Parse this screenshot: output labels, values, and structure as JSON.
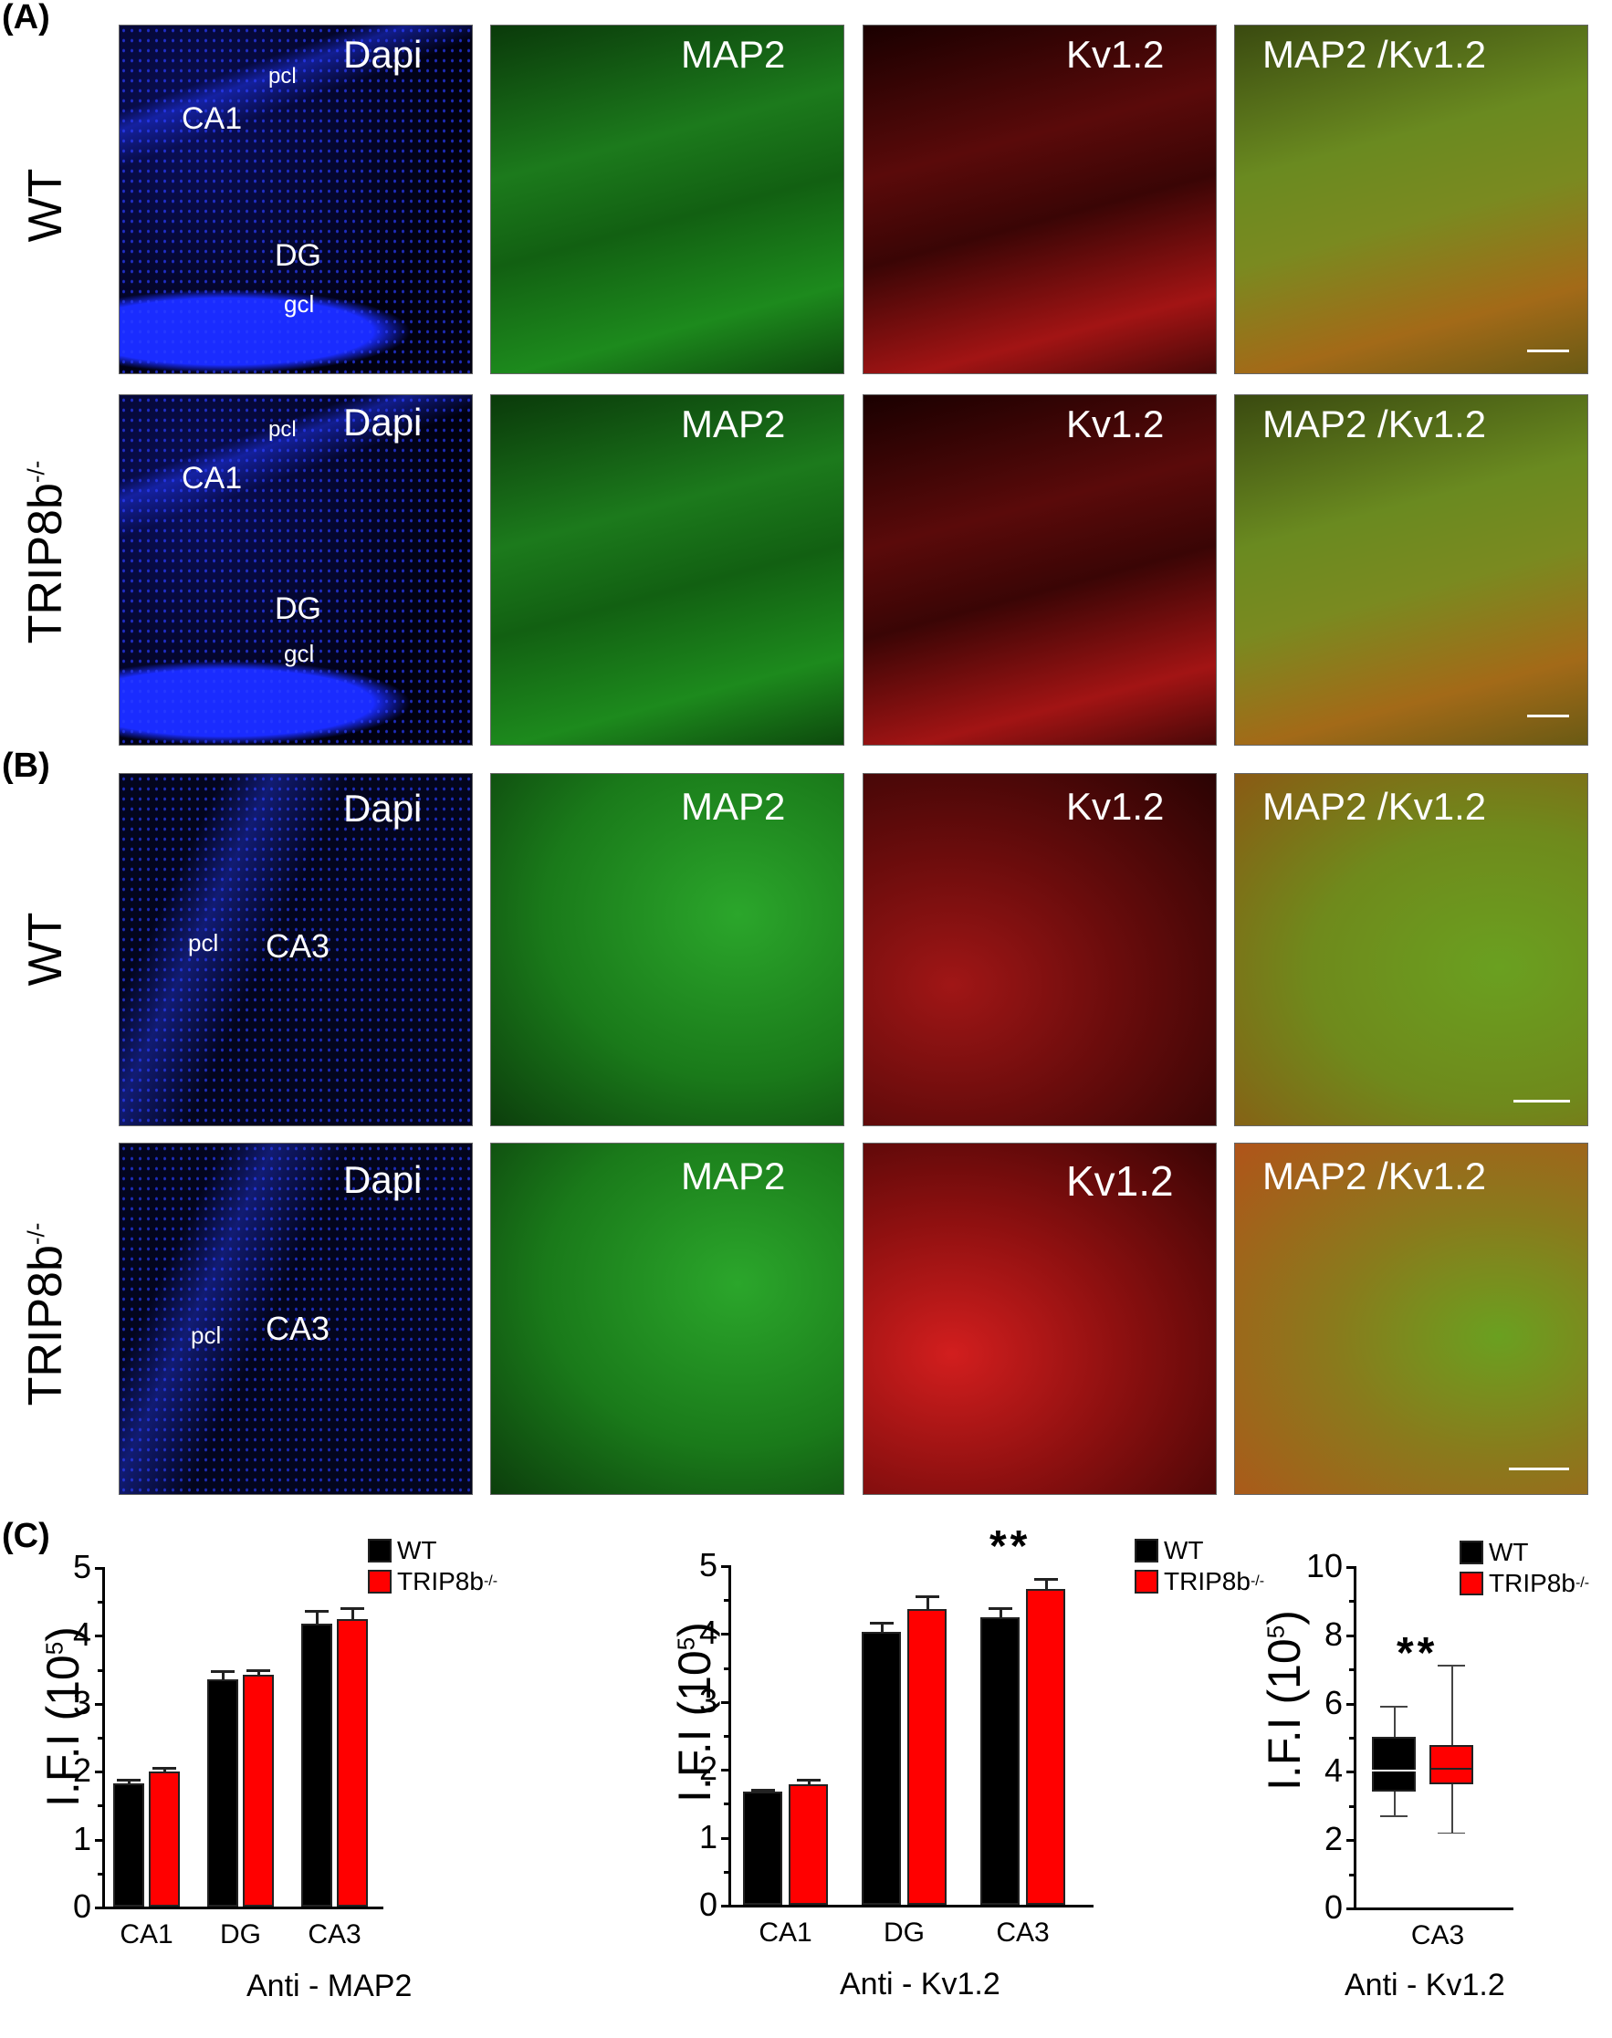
{
  "panels": {
    "A": {
      "label": "(A)",
      "rows": [
        {
          "genotype": "WT",
          "genotype_sup": ""
        },
        {
          "genotype": "TRIP8b",
          "genotype_sup": "-/-"
        }
      ],
      "region_labels": {
        "pcl": "pcl",
        "ca1": "CA1",
        "dg": "DG",
        "gcl": "gcl"
      }
    },
    "B": {
      "label": "(B)",
      "rows": [
        {
          "genotype": "WT",
          "genotype_sup": ""
        },
        {
          "genotype": "TRIP8b",
          "genotype_sup": "-/-"
        }
      ],
      "region_labels": {
        "pcl": "pcl",
        "ca3": "CA3"
      }
    },
    "C": {
      "label": "(C)"
    }
  },
  "channels": {
    "dapi": "Dapi",
    "map2": "MAP2",
    "kv12": "Kv1.2",
    "merge": "MAP2 /Kv1.2"
  },
  "legend": {
    "wt": "WT",
    "ko": "TRIP8b",
    "ko_sup": "-/-"
  },
  "colors": {
    "wt": "#000000",
    "ko": "#ff0000",
    "dapi": "#1a2cff",
    "map2": "#1d8a1d",
    "kv12": "#b01414"
  },
  "chart_data": [
    {
      "type": "bar",
      "title": "",
      "xlabel": "Anti - MAP2",
      "ylabel": "I.F.I (10^5)",
      "ylabel_main": "I.F.I (10",
      "ylabel_sup": "5",
      "ylabel_close": ")",
      "ylim": [
        0,
        5
      ],
      "yticks": [
        "0",
        "1",
        "2",
        "3",
        "4",
        "5"
      ],
      "categories": [
        "CA1",
        "DG",
        "CA3"
      ],
      "series": [
        {
          "name": "WT",
          "color": "#000000",
          "values": [
            1.81,
            3.35,
            4.17
          ],
          "errors": [
            0.07,
            0.13,
            0.2
          ]
        },
        {
          "name": "TRIP8b-/-",
          "color": "#ff0000",
          "values": [
            1.99,
            3.41,
            4.24
          ],
          "errors": [
            0.07,
            0.08,
            0.17
          ]
        }
      ],
      "significance": [],
      "legend_position": "top-right"
    },
    {
      "type": "bar",
      "title": "",
      "xlabel": "Anti - Kv1.2",
      "ylabel": "I.F.I (10^5)",
      "ylabel_main": "I.F.I (10",
      "ylabel_sup": "5",
      "ylabel_close": ")",
      "ylim": [
        0,
        5
      ],
      "yticks": [
        "0",
        "1",
        "2",
        "3",
        "4",
        "5"
      ],
      "categories": [
        "CA1",
        "DG",
        "CA3"
      ],
      "series": [
        {
          "name": "WT",
          "color": "#000000",
          "values": [
            1.67,
            4.02,
            4.24
          ],
          "errors": [
            0.04,
            0.15,
            0.14
          ]
        },
        {
          "name": "TRIP8b-/-",
          "color": "#ff0000",
          "values": [
            1.77,
            4.35,
            4.65
          ],
          "errors": [
            0.08,
            0.2,
            0.16
          ]
        }
      ],
      "significance": [
        {
          "category": "CA3",
          "label": "**"
        }
      ],
      "legend_position": "top-right"
    },
    {
      "type": "box",
      "title": "",
      "xlabel": "Anti - Kv1.2",
      "ylabel": "I.F.I (10^5)",
      "ylabel_main": "I.F.I (10",
      "ylabel_sup": "5",
      "ylabel_close": ")",
      "ylim": [
        0,
        10
      ],
      "yticks": [
        "0",
        "2",
        "4",
        "6",
        "8",
        "10"
      ],
      "categories": [
        "CA3"
      ],
      "series": [
        {
          "name": "WT",
          "color": "#000000",
          "min": 2.7,
          "q1": 3.4,
          "median": 4.05,
          "mean": 4.15,
          "q3": 5.0,
          "max": 5.9
        },
        {
          "name": "TRIP8b-/-",
          "color": "#ff0000",
          "min": 2.2,
          "q1": 3.6,
          "median": 4.1,
          "mean": 4.35,
          "q3": 4.75,
          "max": 7.1
        }
      ],
      "significance": [
        {
          "category": "CA3",
          "label": "**"
        }
      ],
      "legend_position": "top-right"
    }
  ]
}
